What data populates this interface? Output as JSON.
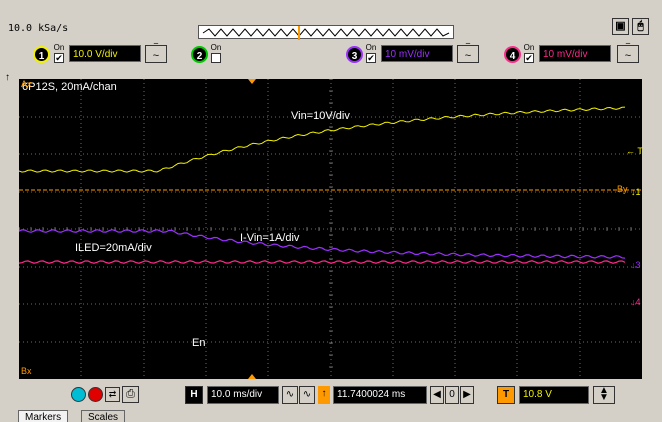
{
  "toolbar": {
    "sample_rate": "10.0 kSa/s",
    "window_buttons": [
      "▣",
      "🖰"
    ]
  },
  "channels": [
    {
      "number": "1",
      "on_label": "On",
      "checked": true,
      "scale": "10.0 V/div",
      "color": "#f2f200"
    },
    {
      "number": "2",
      "on_label": "On",
      "checked": false,
      "scale": "",
      "color": "#00c800"
    },
    {
      "number": "3",
      "on_label": "On",
      "checked": true,
      "scale": "10 mV/div",
      "color": "#9b30ff"
    },
    {
      "number": "4",
      "on_label": "On",
      "checked": true,
      "scale": "10 mV/div",
      "color": "#ff2a8a"
    }
  ],
  "screen": {
    "top_left_label": "6P12S, 20mA/chan",
    "labels": {
      "vin": "Vin=10V/div",
      "ivin": "I-Vin=1A/div",
      "iled": "ILED=20mA/div",
      "en": "En"
    },
    "markers": {
      "ax": "Ax",
      "bx": "Bx",
      "by": "By",
      "trigger": "← T",
      "ch1": "1",
      "ch3": "3",
      "ch4": "4"
    }
  },
  "bottom": {
    "timebase_label": "H",
    "timebase": "10.0 ms/div",
    "delay": "11.7400024 ms",
    "trigger_label": "T",
    "trigger_level": "10.8 V",
    "tabs": [
      "Markers",
      "Scales"
    ]
  },
  "colors": {
    "ch1": "#f2f200",
    "ch3": "#9b30ff",
    "ch4": "#ff2a8a",
    "trigger_orange": "#ff9900",
    "grid": "#6a6a6a"
  }
}
